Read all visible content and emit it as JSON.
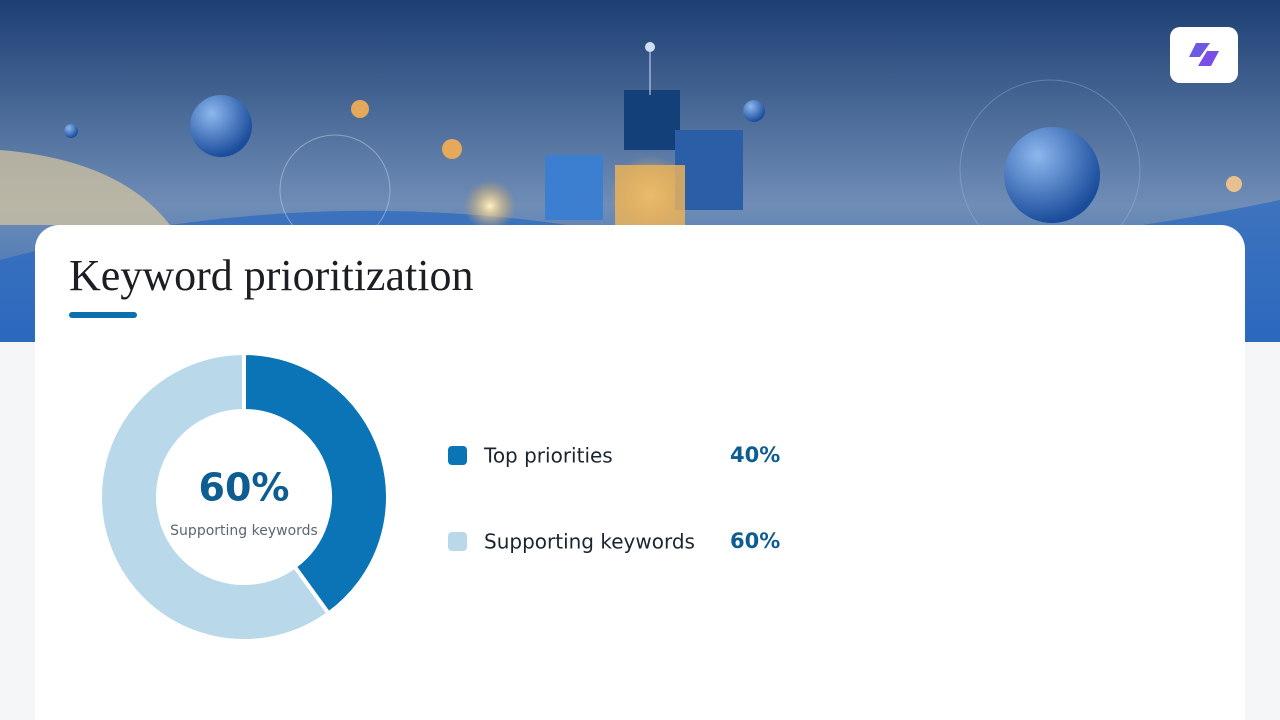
{
  "chart_data": {
    "type": "pie",
    "title": "Keyword prioritization",
    "categories": [
      "Top priorities",
      "Supporting keywords"
    ],
    "values": [
      40,
      60
    ],
    "value_labels": [
      "40%",
      "60%"
    ],
    "colors": [
      "#0b74b6",
      "#b9d9eb"
    ]
  }
}
